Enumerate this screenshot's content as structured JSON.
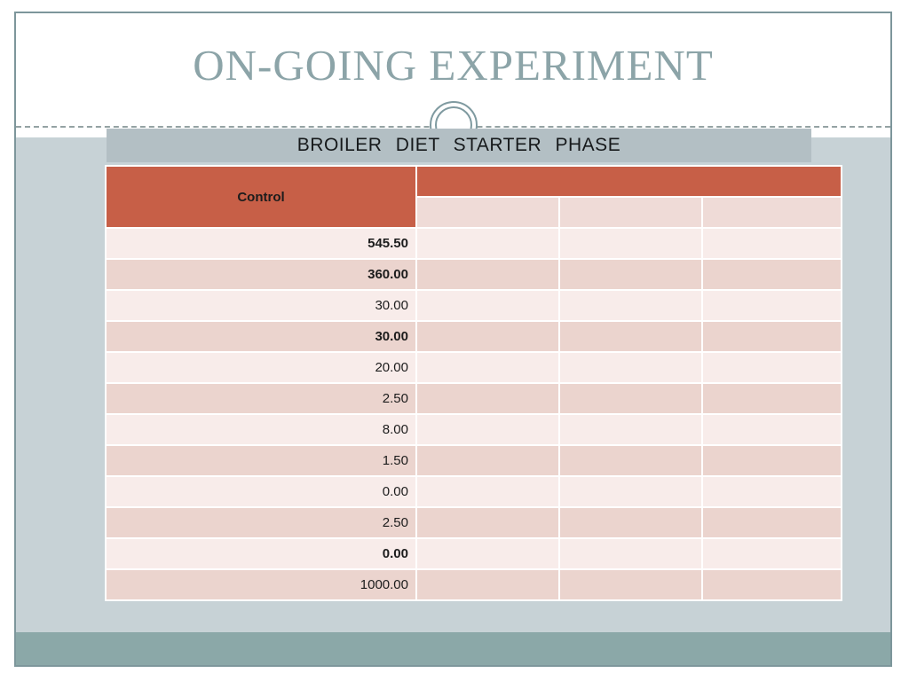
{
  "page": {
    "title": "ON-GOING EXPERIMENT"
  },
  "banner": {
    "label": "BROILER  DIET  STARTER  PHASE"
  },
  "table": {
    "control_header": "Control",
    "empty_columns": 3,
    "rows": [
      {
        "control": "545.50",
        "style": "green"
      },
      {
        "control": "360.00",
        "style": "green"
      },
      {
        "control": "30.00",
        "style": "plain"
      },
      {
        "control": "30.00",
        "style": "green"
      },
      {
        "control": "20.00",
        "style": "plain"
      },
      {
        "control": "2.50",
        "style": "plain"
      },
      {
        "control": "8.00",
        "style": "plain"
      },
      {
        "control": "1.50",
        "style": "plain"
      },
      {
        "control": "0.00",
        "style": "plain"
      },
      {
        "control": "2.50",
        "style": "plain"
      },
      {
        "control": "0.00",
        "style": "bold"
      },
      {
        "control": "1000.00",
        "style": "plain"
      }
    ]
  },
  "colors": {
    "accent_terracotta": "#c75f47",
    "banner_gray": "#b3bfc4",
    "value_green": "#1e7b2e",
    "title_teal": "#8ca4a8",
    "background_bluegray": "#c7d2d6",
    "footer_teal": "#8ba8a8",
    "row_light": "#f8ecea",
    "row_dark": "#ebd4ce"
  }
}
